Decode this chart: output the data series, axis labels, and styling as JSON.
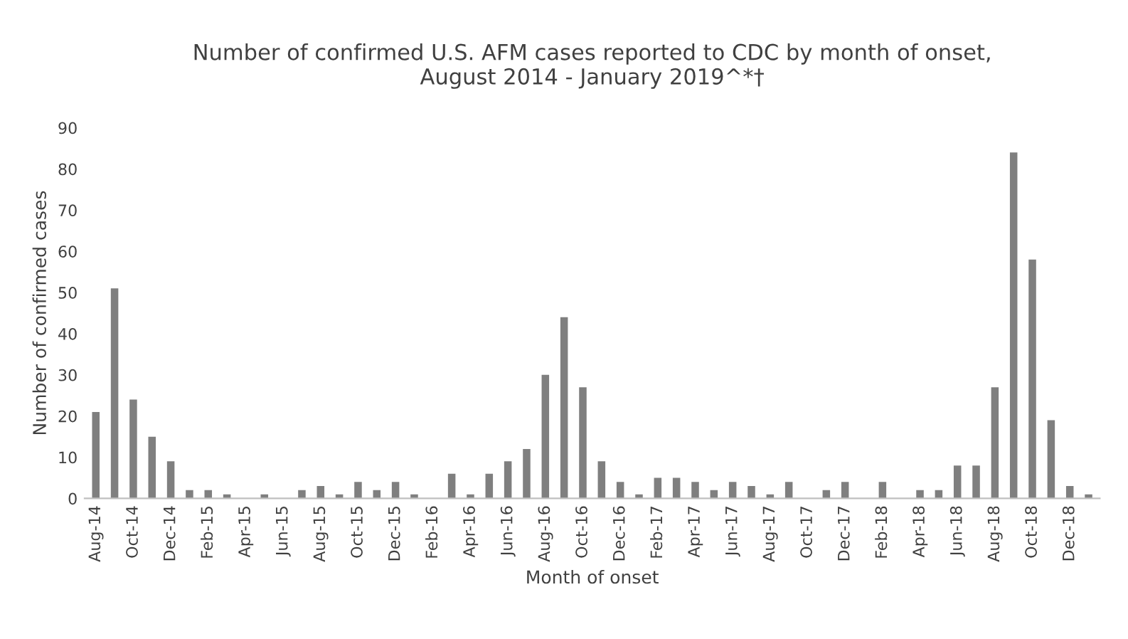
{
  "chart_data": {
    "type": "bar",
    "title": "Number of confirmed U.S. AFM cases reported to CDC by month of onset,\nAugust 2014 - January 2019^*†",
    "xlabel": "Month of onset",
    "ylabel": "Number of confirmed cases",
    "categories": [
      "Aug-14",
      null,
      "Oct-14",
      null,
      "Dec-14",
      null,
      "Feb-15",
      null,
      "Apr-15",
      null,
      "Jun-15",
      null,
      "Aug-15",
      null,
      "Oct-15",
      null,
      "Dec-15",
      null,
      "Feb-16",
      null,
      "Apr-16",
      null,
      "Jun-16",
      null,
      "Aug-16",
      null,
      "Oct-16",
      null,
      "Dec-16",
      null,
      "Feb-17",
      null,
      "Apr-17",
      null,
      "Jun-17",
      null,
      "Aug-17",
      null,
      "Oct-17",
      null,
      "Dec-17",
      null,
      "Feb-18",
      null,
      "Apr-18",
      null,
      "Jun-18",
      null,
      "Aug-18",
      null,
      "Oct-18",
      null,
      "Dec-18",
      null
    ],
    "values": [
      21,
      51,
      24,
      15,
      9,
      2,
      2,
      1,
      0,
      1,
      0,
      2,
      3,
      1,
      4,
      2,
      4,
      1,
      0,
      6,
      1,
      6,
      9,
      12,
      30,
      44,
      27,
      9,
      4,
      1,
      5,
      5,
      4,
      2,
      4,
      3,
      1,
      4,
      0,
      2,
      4,
      0,
      4,
      0,
      2,
      2,
      8,
      8,
      27,
      84,
      58,
      19,
      3,
      1
    ],
    "color": "#7f7f7f",
    "ylim": [
      0,
      90
    ],
    "yticks": [
      0,
      10,
      20,
      30,
      40,
      50,
      60,
      70,
      80,
      90
    ],
    "grid": false
  }
}
